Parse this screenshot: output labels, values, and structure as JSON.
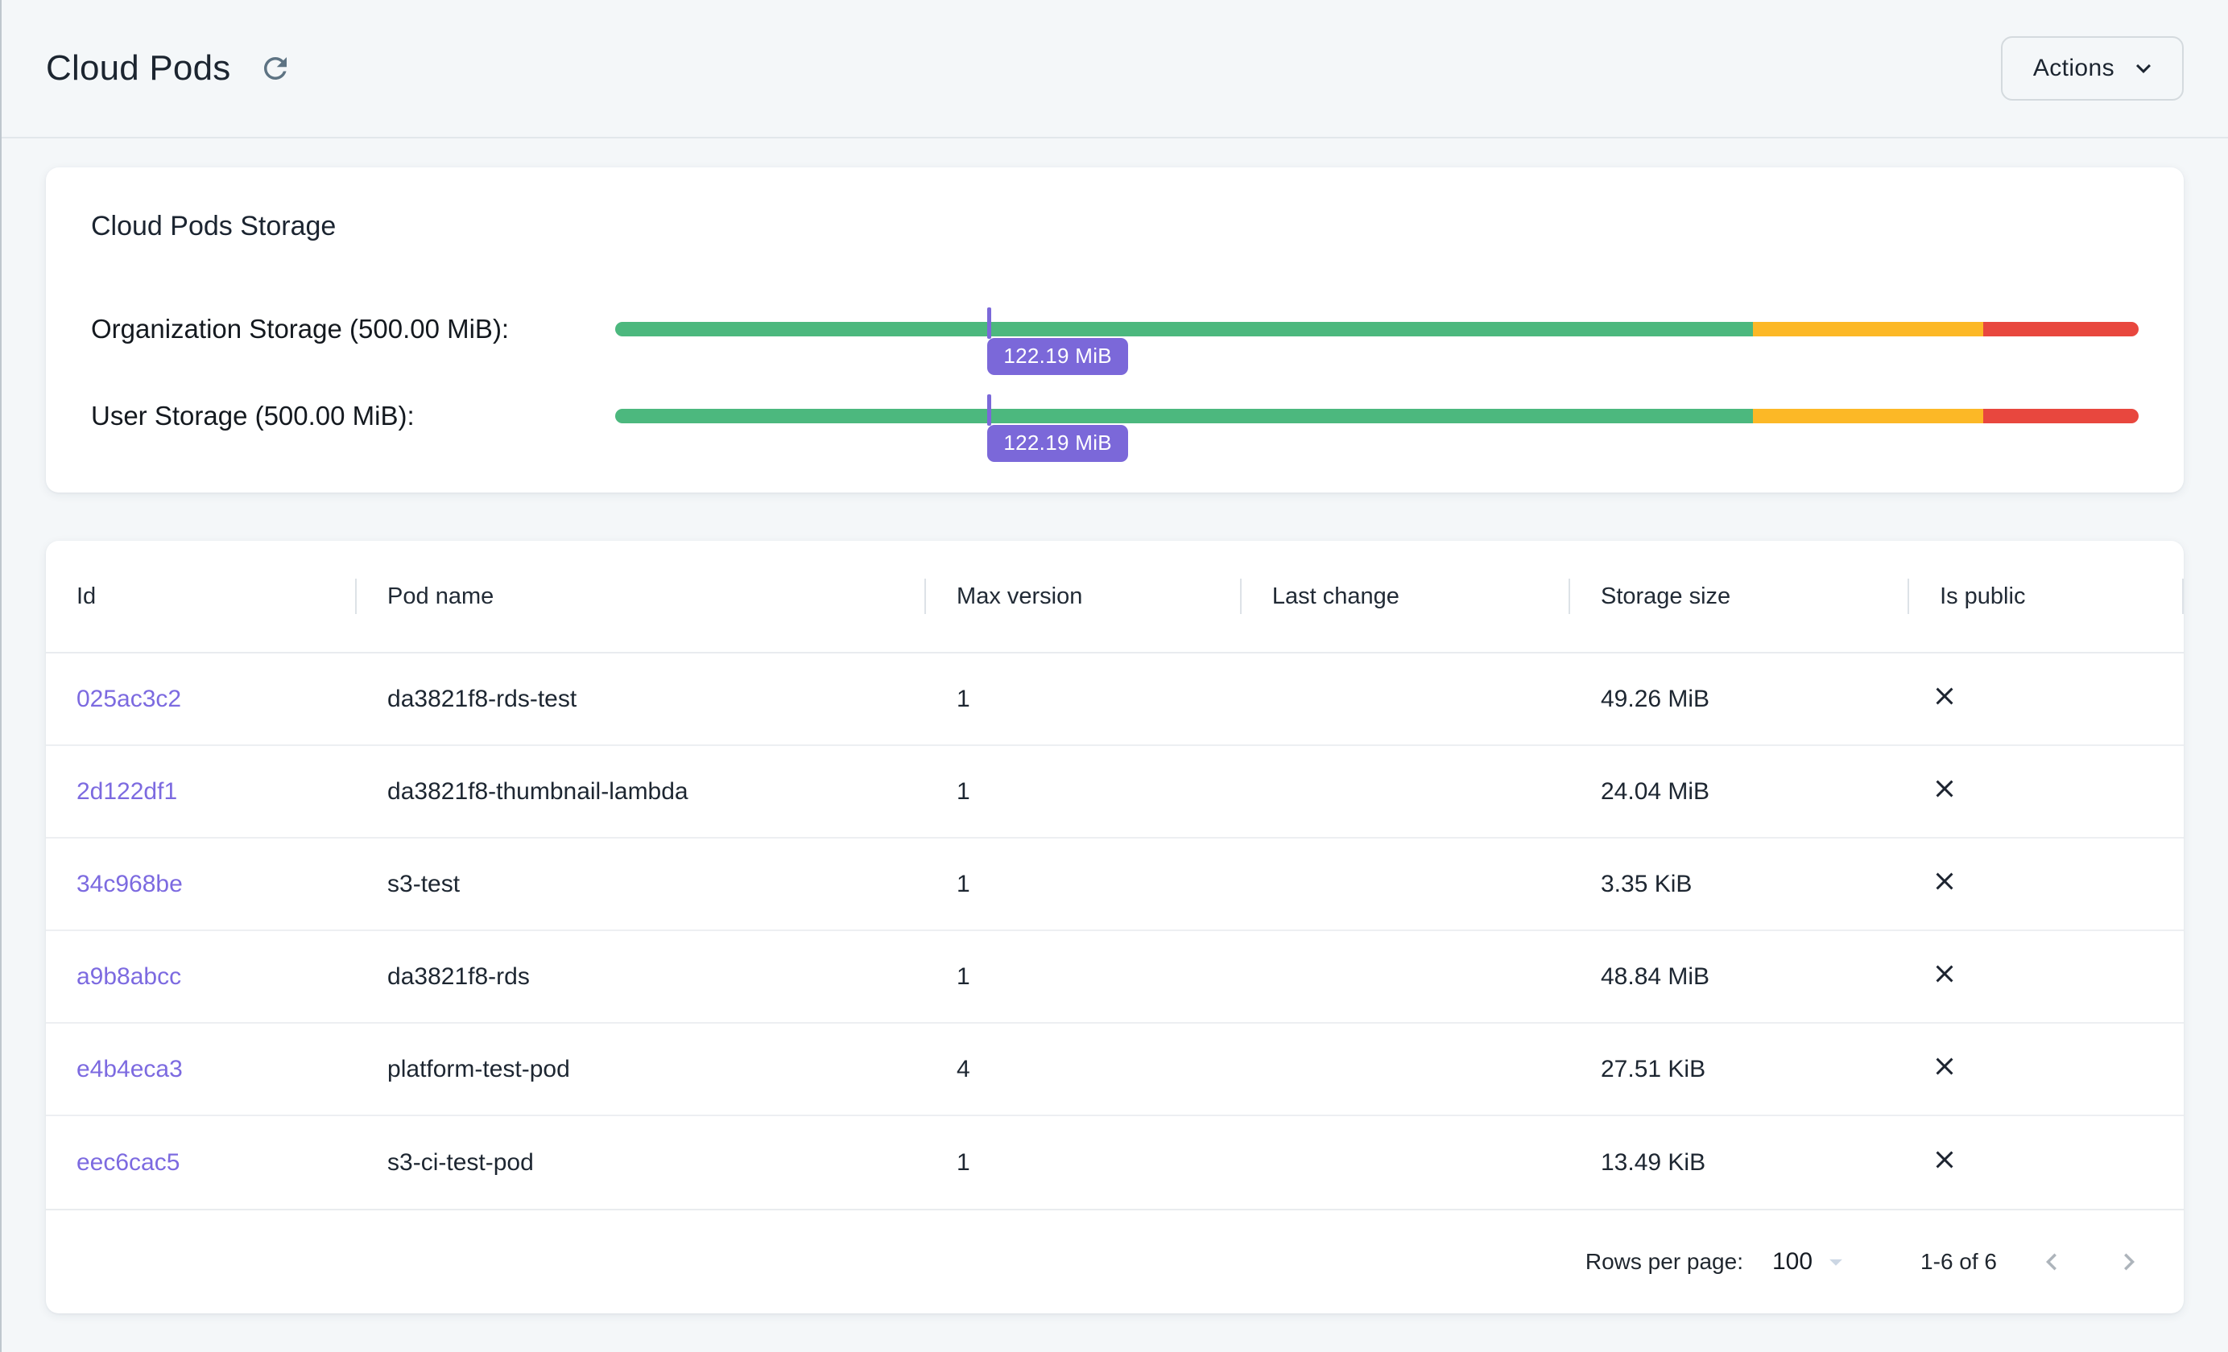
{
  "header": {
    "title": "Cloud Pods",
    "actions_label": "Actions"
  },
  "storage_card": {
    "title": "Cloud Pods Storage",
    "meters": [
      {
        "name": "organization-storage",
        "label": "Organization Storage (500.00 MiB):",
        "capacity": "500.00 MiB",
        "used": "122.19 MiB",
        "used_percent": 24.44,
        "segments": [
          {
            "zone": "ok",
            "percent": 74.7
          },
          {
            "zone": "warning",
            "percent": 15.1
          },
          {
            "zone": "critical",
            "percent": 10.2
          }
        ]
      },
      {
        "name": "user-storage",
        "label": "User Storage (500.00 MiB):",
        "capacity": "500.00 MiB",
        "used": "122.19 MiB",
        "used_percent": 24.44,
        "segments": [
          {
            "zone": "ok",
            "percent": 74.7
          },
          {
            "zone": "warning",
            "percent": 15.1
          },
          {
            "zone": "critical",
            "percent": 10.2
          }
        ]
      }
    ]
  },
  "table": {
    "columns": [
      "Id",
      "Pod name",
      "Max version",
      "Last change",
      "Storage size",
      "Is public"
    ],
    "rows": [
      {
        "id": "025ac3c2",
        "pod_name": "da3821f8-rds-test",
        "max_version": "1",
        "last_change": "",
        "storage_size": "49.26 MiB",
        "is_public": false
      },
      {
        "id": "2d122df1",
        "pod_name": "da3821f8-thumbnail-lambda",
        "max_version": "1",
        "last_change": "",
        "storage_size": "24.04 MiB",
        "is_public": false
      },
      {
        "id": "34c968be",
        "pod_name": "s3-test",
        "max_version": "1",
        "last_change": "",
        "storage_size": "3.35 KiB",
        "is_public": false
      },
      {
        "id": "a9b8abcc",
        "pod_name": "da3821f8-rds",
        "max_version": "1",
        "last_change": "",
        "storage_size": "48.84 MiB",
        "is_public": false
      },
      {
        "id": "e4b4eca3",
        "pod_name": "platform-test-pod",
        "max_version": "4",
        "last_change": "",
        "storage_size": "27.51 KiB",
        "is_public": false
      },
      {
        "id": "eec6cac5",
        "pod_name": "s3-ci-test-pod",
        "max_version": "1",
        "last_change": "",
        "storage_size": "13.49 KiB",
        "is_public": false
      }
    ],
    "pagination": {
      "rows_per_page_label": "Rows per page:",
      "rows_per_page": "100",
      "range_label": "1-6 of 6"
    }
  },
  "colors": {
    "background": "#f4f7f9",
    "accent_purple": "#7b68d9",
    "link_purple": "#7c6ae0",
    "meter_ok": "#4cb87e",
    "meter_warning": "#fcb826",
    "meter_critical": "#e8473e",
    "text_primary": "#1d2631"
  }
}
